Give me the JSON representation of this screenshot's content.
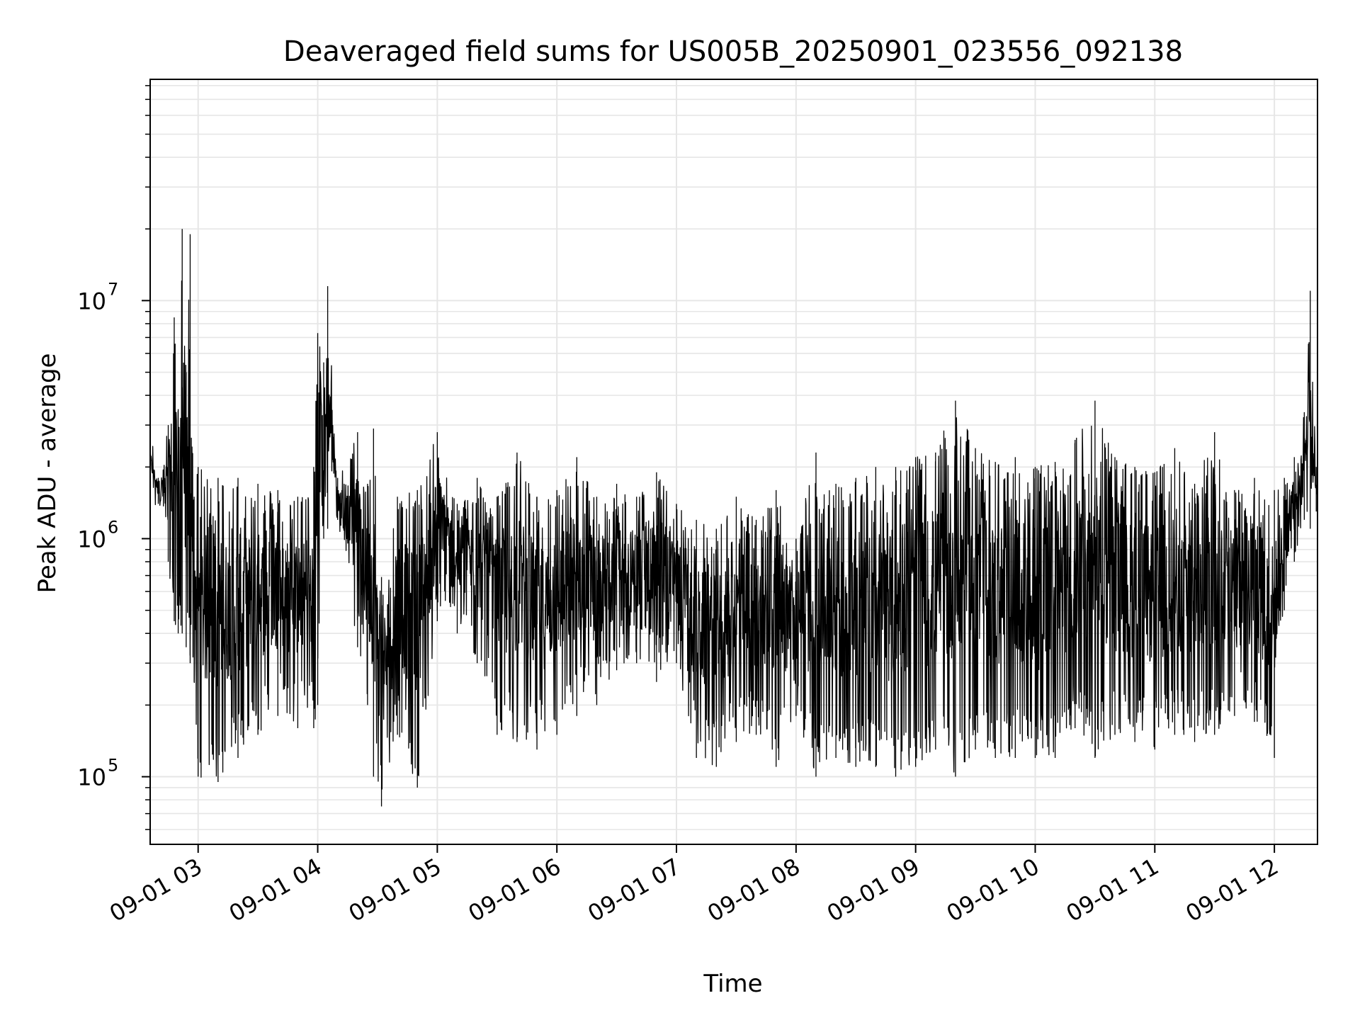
{
  "chart_data": {
    "type": "line",
    "title": "Deaveraged field sums for US005B_20250901_023556_092138",
    "xlabel": "Time",
    "ylabel": "Peak ADU - average",
    "yscale": "log",
    "ylim": [
      52000,
      85000000
    ],
    "xlim": [
      "2025-09-01 02:35:56",
      "2025-09-01 12:21:38"
    ],
    "grid": true,
    "line_color": "#000000",
    "grid_color": "#e6e6e6",
    "x_ticks": [
      {
        "value": "2025-09-01 03:00",
        "label": "09-01 03"
      },
      {
        "value": "2025-09-01 04:00",
        "label": "09-01 04"
      },
      {
        "value": "2025-09-01 05:00",
        "label": "09-01 05"
      },
      {
        "value": "2025-09-01 06:00",
        "label": "09-01 06"
      },
      {
        "value": "2025-09-01 07:00",
        "label": "09-01 07"
      },
      {
        "value": "2025-09-01 08:00",
        "label": "09-01 08"
      },
      {
        "value": "2025-09-01 09:00",
        "label": "09-01 09"
      },
      {
        "value": "2025-09-01 10:00",
        "label": "09-01 10"
      },
      {
        "value": "2025-09-01 11:00",
        "label": "09-01 11"
      },
      {
        "value": "2025-09-01 12:00",
        "label": "09-01 12"
      }
    ],
    "y_ticks": [
      {
        "value": 100000,
        "mantissa": "10",
        "exponent": "5"
      },
      {
        "value": 1000000,
        "mantissa": "10",
        "exponent": "6"
      },
      {
        "value": 10000000,
        "mantissa": "10",
        "exponent": "7"
      }
    ],
    "series": [
      {
        "x": [
          "2025-09-01 02:35",
          "2025-09-01 02:40",
          "2025-09-01 02:45",
          "2025-09-01 02:48",
          "2025-09-01 02:50",
          "2025-09-01 02:52",
          "2025-09-01 02:54",
          "2025-09-01 02:56",
          "2025-09-01 02:58",
          "2025-09-01 03:00",
          "2025-09-01 03:10",
          "2025-09-01 03:20",
          "2025-09-01 03:30",
          "2025-09-01 03:40",
          "2025-09-01 03:50",
          "2025-09-01 03:58",
          "2025-09-01 04:00",
          "2025-09-01 04:03",
          "2025-09-01 04:05",
          "2025-09-01 04:10",
          "2025-09-01 04:20",
          "2025-09-01 04:25",
          "2025-09-01 04:28",
          "2025-09-01 04:32",
          "2025-09-01 04:40",
          "2025-09-01 04:50",
          "2025-09-01 05:00",
          "2025-09-01 05:10",
          "2025-09-01 05:20",
          "2025-09-01 05:30",
          "2025-09-01 05:40",
          "2025-09-01 05:50",
          "2025-09-01 06:00",
          "2025-09-01 06:10",
          "2025-09-01 06:20",
          "2025-09-01 06:30",
          "2025-09-01 06:40",
          "2025-09-01 06:50",
          "2025-09-01 07:00",
          "2025-09-01 07:10",
          "2025-09-01 07:20",
          "2025-09-01 07:30",
          "2025-09-01 07:40",
          "2025-09-01 07:50",
          "2025-09-01 08:00",
          "2025-09-01 08:10",
          "2025-09-01 08:20",
          "2025-09-01 08:30",
          "2025-09-01 08:40",
          "2025-09-01 08:50",
          "2025-09-01 09:00",
          "2025-09-01 09:10",
          "2025-09-01 09:20",
          "2025-09-01 09:30",
          "2025-09-01 09:40",
          "2025-09-01 09:50",
          "2025-09-01 10:00",
          "2025-09-01 10:10",
          "2025-09-01 10:20",
          "2025-09-01 10:30",
          "2025-09-01 10:40",
          "2025-09-01 10:50",
          "2025-09-01 11:00",
          "2025-09-01 11:10",
          "2025-09-01 11:20",
          "2025-09-01 11:30",
          "2025-09-01 11:40",
          "2025-09-01 11:50",
          "2025-09-01 12:00",
          "2025-09-01 12:05",
          "2025-09-01 12:10",
          "2025-09-01 12:15",
          "2025-09-01 12:18",
          "2025-09-01 12:21"
        ],
        "hi": [
          2600000,
          1800000,
          3000000,
          8500000,
          3500000,
          20000000,
          5000000,
          19000000,
          1500000,
          2000000,
          1800000,
          1800000,
          1700000,
          1600000,
          1500000,
          2000000,
          7300000,
          5500000,
          11500000,
          1800000,
          2800000,
          1700000,
          2900000,
          690000,
          1500000,
          1600000,
          2800000,
          1400000,
          1800000,
          1500000,
          2300000,
          1500000,
          1600000,
          2200000,
          1500000,
          1700000,
          1500000,
          1900000,
          1400000,
          1200000,
          1100000,
          1500000,
          1200000,
          1600000,
          1000000,
          2300000,
          1700000,
          1800000,
          2000000,
          2000000,
          2200000,
          2300000,
          3800000,
          2400000,
          2100000,
          2200000,
          2000000,
          2100000,
          2600000,
          3800000,
          2200000,
          2000000,
          1900000,
          2400000,
          1700000,
          2800000,
          1600000,
          1800000,
          1600000,
          1800000,
          2200000,
          3400000,
          11000000,
          2000000
        ],
        "lo": [
          1900000,
          1400000,
          800000,
          450000,
          400000,
          400000,
          350000,
          300000,
          250000,
          100000,
          95000,
          120000,
          150000,
          180000,
          160000,
          160000,
          200000,
          1000000,
          1100000,
          1200000,
          350000,
          200000,
          100000,
          75000,
          150000,
          90000,
          450000,
          400000,
          300000,
          150000,
          140000,
          130000,
          150000,
          180000,
          200000,
          280000,
          300000,
          250000,
          300000,
          120000,
          110000,
          140000,
          150000,
          110000,
          180000,
          100000,
          120000,
          110000,
          110000,
          100000,
          110000,
          130000,
          100000,
          130000,
          120000,
          120000,
          120000,
          120000,
          160000,
          120000,
          150000,
          140000,
          130000,
          150000,
          140000,
          150000,
          180000,
          170000,
          120000,
          500000,
          800000,
          1200000,
          1100000,
          1300000
        ]
      }
    ]
  }
}
